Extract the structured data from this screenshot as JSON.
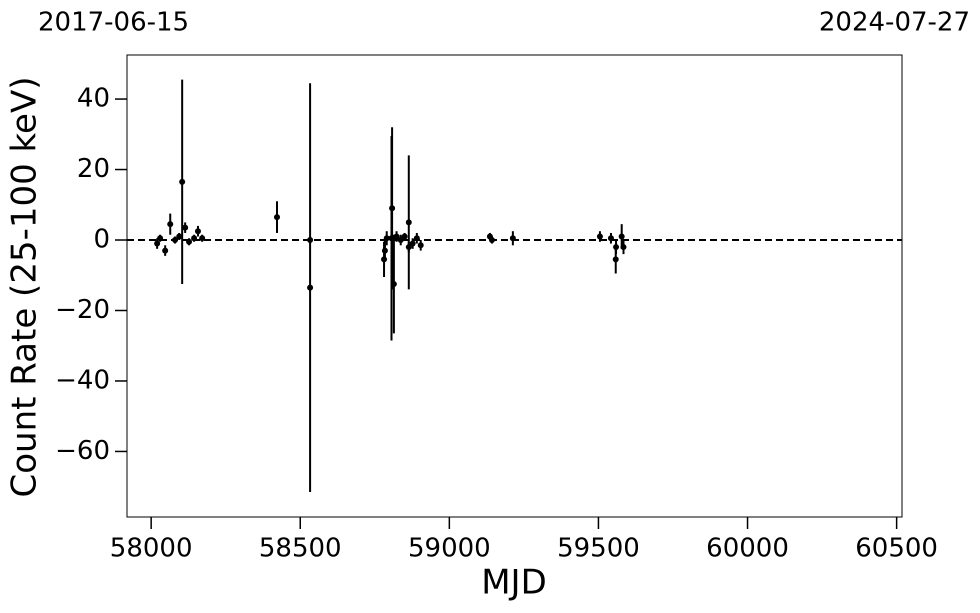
{
  "chart_data": {
    "type": "errorbar",
    "xlabel": "MJD",
    "ylabel": "Count Rate (25-100 keV)",
    "top_labels": [
      "2017-06-15",
      "2024-07-27"
    ],
    "color": "#000000",
    "x": [
      58020,
      58030,
      58047,
      58064,
      58080,
      58094,
      58104,
      58114,
      58127,
      58144,
      58157,
      58171,
      58422,
      58533,
      58533,
      58781,
      58784,
      58790,
      58806,
      58808,
      58814,
      58823,
      58837,
      58850,
      58864,
      58864,
      58877,
      58891,
      58904,
      59136,
      59143,
      59213,
      59505,
      59542,
      59558,
      59559,
      59578,
      59584
    ],
    "values": [
      -1,
      0.5,
      -3,
      4.5,
      0,
      1,
      16.5,
      3.5,
      -0.5,
      0.5,
      2.5,
      0.5,
      6.5,
      0,
      -13.5,
      -5.5,
      -3,
      0.5,
      0.5,
      9,
      -12.5,
      1,
      0,
      1,
      5,
      -2,
      -1,
      0.5,
      -1.5,
      1,
      0,
      0.5,
      1,
      0.5,
      -5.5,
      -2,
      1,
      -2
    ],
    "errors": [
      1.5,
      1,
      1.5,
      3,
      1,
      1,
      29,
      1.5,
      1,
      1,
      1.5,
      1,
      4.5,
      1,
      58,
      5,
      3,
      2,
      29,
      23,
      14,
      1.5,
      1.5,
      1,
      19,
      1.5,
      1.5,
      1.5,
      1.5,
      1,
      1,
      2,
      1.5,
      1.5,
      4,
      2,
      3.5,
      2
    ],
    "hline": 0,
    "xlim": [
      57919,
      60518
    ],
    "ylim": [
      -78.6,
      52.5
    ],
    "xticks": [
      58000,
      58500,
      59000,
      59500,
      60000,
      60500
    ],
    "yticks": [
      {
        "value": -60,
        "label": "−60"
      },
      {
        "value": -40,
        "label": "−40"
      },
      {
        "value": -20,
        "label": "−20"
      },
      0,
      20,
      40
    ]
  }
}
